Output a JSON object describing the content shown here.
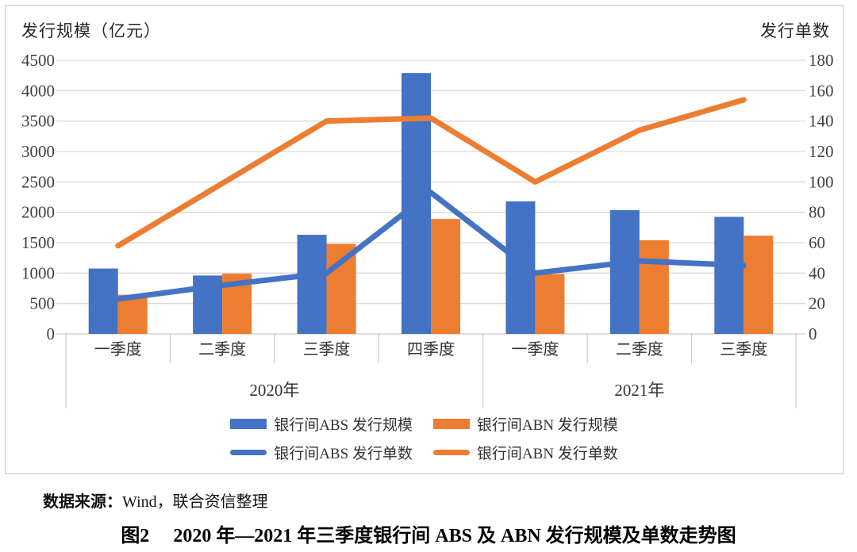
{
  "chart_data": {
    "type": "combo-bar-line",
    "title": "图2 2020 年—2021 年三季度银行间 ABS 及 ABN 发行规模及单数走势图",
    "grid": true,
    "legend_position": "bottom",
    "categories": [
      "一季度",
      "二季度",
      "三季度",
      "四季度",
      "一季度",
      "二季度",
      "三季度"
    ],
    "year_groups": [
      {
        "label": "2020年",
        "span": 4
      },
      {
        "label": "2021年",
        "span": 3
      }
    ],
    "left_axis": {
      "title": "发行规模（亿元）",
      "min": 0,
      "max": 4500,
      "step": 500,
      "ticks": [
        0,
        500,
        1000,
        1500,
        2000,
        2500,
        3000,
        3500,
        4000,
        4500
      ]
    },
    "right_axis": {
      "title": "发行单数",
      "min": 0,
      "max": 180,
      "step": 20,
      "ticks": [
        0,
        20,
        40,
        60,
        80,
        100,
        120,
        140,
        160,
        180
      ]
    },
    "series": [
      {
        "name": "银行间ABS 发行规模",
        "type": "bar",
        "axis": "left",
        "color": "#4472C4",
        "values": [
          1075,
          960,
          1630,
          4290,
          2180,
          2035,
          1925
        ]
      },
      {
        "name": "银行间ABN 发行规模",
        "type": "bar",
        "axis": "left",
        "color": "#ED7D31",
        "values": [
          645,
          990,
          1480,
          1890,
          985,
          1540,
          1615
        ]
      },
      {
        "name": "银行间ABS 发行单数",
        "type": "line",
        "axis": "right",
        "color": "#4472C4",
        "values": [
          23,
          32,
          40,
          93,
          40,
          48,
          45
        ]
      },
      {
        "name": "银行间ABN 发行单数",
        "type": "line",
        "axis": "right",
        "color": "#ED7D31",
        "values": [
          58,
          99,
          140,
          142,
          100,
          134,
          154
        ]
      }
    ],
    "colors": {
      "abs_blue": "#4472C4",
      "abn_orange": "#ED7D31",
      "gridline": "#D9D9D9",
      "axis_line": "#C9C9C9",
      "tick_text": "#404040"
    }
  },
  "source": {
    "label_bold": "数据来源：",
    "text": "Wind，联合资信整理"
  },
  "caption": {
    "number": "图2",
    "title": "2020 年—2021 年三季度银行间 ABS 及 ABN 发行规模及单数走势图"
  }
}
